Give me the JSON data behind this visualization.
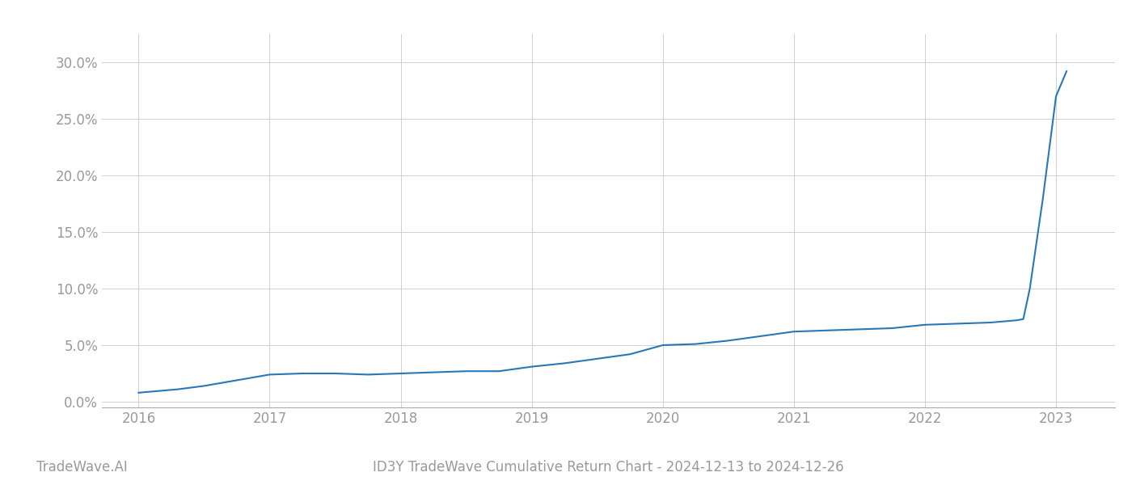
{
  "x_values": [
    2016.0,
    2016.1,
    2016.2,
    2016.3,
    2016.5,
    2016.75,
    2017.0,
    2017.25,
    2017.5,
    2017.75,
    2018.0,
    2018.25,
    2018.5,
    2018.75,
    2019.0,
    2019.25,
    2019.5,
    2019.75,
    2020.0,
    2020.25,
    2020.5,
    2020.75,
    2021.0,
    2021.25,
    2021.5,
    2021.75,
    2022.0,
    2022.25,
    2022.5,
    2022.6,
    2022.7,
    2022.75,
    2022.8,
    2022.9,
    2023.0,
    2023.08
  ],
  "y_values": [
    0.008,
    0.009,
    0.01,
    0.011,
    0.014,
    0.019,
    0.024,
    0.025,
    0.025,
    0.024,
    0.025,
    0.026,
    0.027,
    0.027,
    0.031,
    0.034,
    0.038,
    0.042,
    0.05,
    0.051,
    0.054,
    0.058,
    0.062,
    0.063,
    0.064,
    0.065,
    0.068,
    0.069,
    0.07,
    0.071,
    0.072,
    0.073,
    0.1,
    0.18,
    0.27,
    0.292
  ],
  "line_color": "#2878b8",
  "line_width": 1.5,
  "background_color": "#ffffff",
  "grid_color": "#d0d0d0",
  "title": "ID3Y TradeWave Cumulative Return Chart - 2024-12-13 to 2024-12-26",
  "watermark": "TradeWave.AI",
  "ytick_labels": [
    "0.0%",
    "5.0%",
    "10.0%",
    "15.0%",
    "20.0%",
    "25.0%",
    "30.0%"
  ],
  "ytick_values": [
    0.0,
    0.05,
    0.1,
    0.15,
    0.2,
    0.25,
    0.3
  ],
  "xtick_labels": [
    "2016",
    "2017",
    "2018",
    "2019",
    "2020",
    "2021",
    "2022",
    "2023"
  ],
  "xtick_values": [
    2016,
    2017,
    2018,
    2019,
    2020,
    2021,
    2022,
    2023
  ],
  "xlim": [
    2015.72,
    2023.45
  ],
  "ylim": [
    -0.005,
    0.325
  ],
  "tick_color": "#999999",
  "label_fontsize": 12,
  "watermark_fontsize": 12,
  "title_fontsize": 12
}
